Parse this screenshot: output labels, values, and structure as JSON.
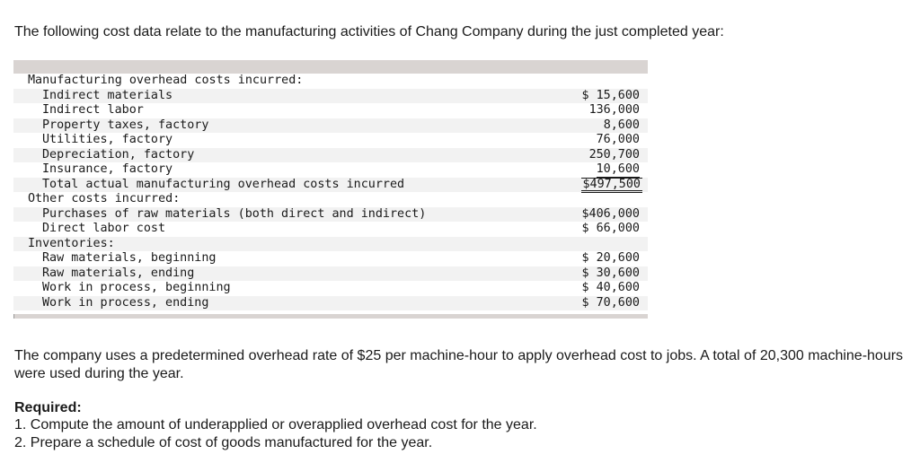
{
  "intro": "The following cost data relate to the manufacturing activities of Chang Company during the just completed year:",
  "table": {
    "rows": [
      {
        "label": "Manufacturing overhead costs incurred:",
        "value": ""
      },
      {
        "label": "Indirect materials",
        "value": "$ 15,600"
      },
      {
        "label": "Indirect labor",
        "value": "136,000"
      },
      {
        "label": "Property taxes, factory",
        "value": "8,600"
      },
      {
        "label": "Utilities, factory",
        "value": "76,000"
      },
      {
        "label": "Depreciation, factory",
        "value": "250,700"
      },
      {
        "label": "Insurance, factory",
        "value": "10,600"
      },
      {
        "label": "Total actual manufacturing overhead costs incurred",
        "value": "$497,500"
      },
      {
        "label": "Other costs incurred:",
        "value": ""
      },
      {
        "label": "Purchases of raw materials (both direct and indirect)",
        "value": "$406,000"
      },
      {
        "label": "Direct labor cost",
        "value": "$ 66,000"
      },
      {
        "label": "Inventories:",
        "value": ""
      },
      {
        "label": "Raw materials, beginning",
        "value": "$ 20,600"
      },
      {
        "label": "Raw materials, ending",
        "value": "$ 30,600"
      },
      {
        "label": "Work in process, beginning",
        "value": "$ 40,600"
      },
      {
        "label": "Work in process, ending",
        "value": "$ 70,600"
      }
    ]
  },
  "paragraph": "The company uses a predetermined overhead rate of $25 per machine-hour to apply overhead cost to jobs. A total of 20,300 machine-hours were used during the year.",
  "required": {
    "heading": "Required:",
    "items": [
      "1. Compute the amount of underapplied or overapplied overhead cost for the year.",
      "2. Prepare a schedule of cost of goods manufactured for the year."
    ]
  }
}
